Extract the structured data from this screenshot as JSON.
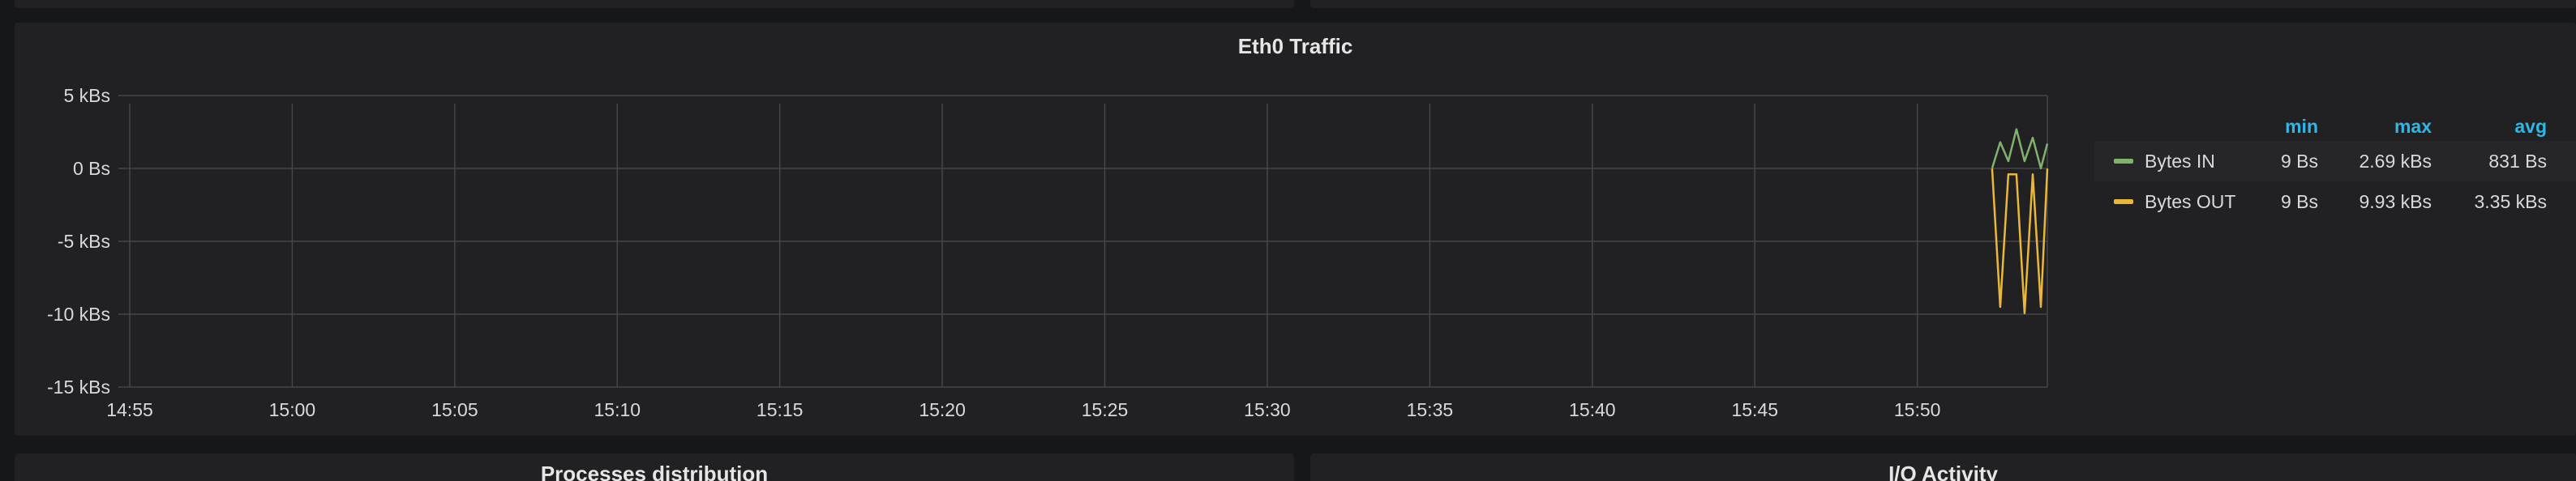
{
  "panel": {
    "title": "Eth0 Traffic"
  },
  "chart_data": {
    "type": "line",
    "title": "Eth0 Traffic",
    "ylim": [
      -15000,
      5000
    ],
    "y_ticks": [
      {
        "value": 5000,
        "label": "5 kBs"
      },
      {
        "value": 0,
        "label": "0 Bs"
      },
      {
        "value": -5000,
        "label": "-5 kBs"
      },
      {
        "value": -10000,
        "label": "-10 kBs"
      },
      {
        "value": -15000,
        "label": "-15 kBs"
      }
    ],
    "xlim": [
      0,
      59
    ],
    "x_ticks": [
      {
        "value": 0,
        "label": "14:55"
      },
      {
        "value": 5,
        "label": "15:00"
      },
      {
        "value": 10,
        "label": "15:05"
      },
      {
        "value": 15,
        "label": "15:10"
      },
      {
        "value": 20,
        "label": "15:15"
      },
      {
        "value": 25,
        "label": "15:20"
      },
      {
        "value": 30,
        "label": "15:25"
      },
      {
        "value": 35,
        "label": "15:30"
      },
      {
        "value": 40,
        "label": "15:35"
      },
      {
        "value": 45,
        "label": "15:40"
      },
      {
        "value": 50,
        "label": "15:45"
      },
      {
        "value": 55,
        "label": "15:50"
      }
    ],
    "series": [
      {
        "name": "Bytes IN",
        "color": "#7eb26d",
        "x": [
          57.3,
          57.55,
          57.8,
          58.05,
          58.3,
          58.55,
          58.8,
          59.0
        ],
        "values": [
          9,
          1800,
          500,
          2690,
          500,
          2100,
          9,
          1700
        ],
        "min": "9 Bs",
        "max": "2.69 kBs",
        "avg": "831 Bs"
      },
      {
        "name": "Bytes OUT",
        "color": "#eab839",
        "x": [
          57.3,
          57.55,
          57.8,
          58.05,
          58.3,
          58.55,
          58.8,
          59.0
        ],
        "values": [
          -9,
          -9500,
          -400,
          -400,
          -9930,
          -400,
          -9500,
          -9
        ],
        "min": "9 Bs",
        "max": "9.93 kBs",
        "avg": "3.35 kBs"
      }
    ],
    "legend": {
      "headers": {
        "min": "min",
        "max": "max",
        "avg": "avg"
      },
      "placement": "right"
    }
  },
  "other_panels": {
    "processes_title": "Processes distribution",
    "io_title": "I/O Activity"
  }
}
